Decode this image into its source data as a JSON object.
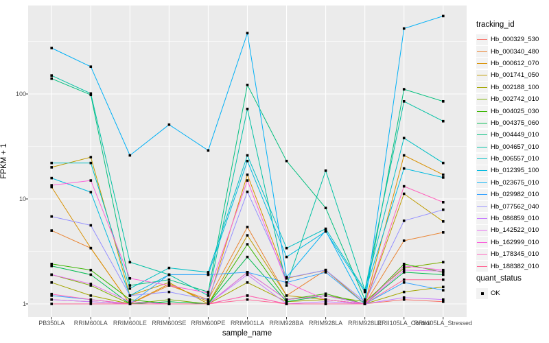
{
  "figure": {
    "panel_bg": "#EBEBEB",
    "grid_color": "#FFFFFF",
    "tick_color": "#333333",
    "tick_label_color": "#4D4D4D",
    "point_color": "#000000",
    "legend_key_bg": "#F2F2F2"
  },
  "chart_data": {
    "type": "line",
    "xlabel": "sample_name",
    "ylabel": "FPKM + 1",
    "y_scale": "log10",
    "y_ticks": [
      1,
      10,
      100
    ],
    "y_minor_ticks": [
      3.162,
      31.62,
      316.2
    ],
    "ylim_log10": [
      -0.08,
      2.85
    ],
    "grid": "on",
    "marker": "black-square",
    "legend_title": "tracking_id",
    "legend_position": "right",
    "x_categories": [
      "PB350LA",
      "RRIM600LA",
      "RRIM600LE",
      "RRIM600SE",
      "RRIM600PE",
      "RRIM901LA",
      "RRIM928BA",
      "RRIM928LA",
      "RRIM928LE",
      "RRII105LA_Control",
      "RRII105LA_Stressed"
    ],
    "series": [
      {
        "name": "Hb_000329_530",
        "color": "#F8766D",
        "values": [
          1.1,
          1.05,
          1.0,
          1.0,
          1.0,
          1.2,
          1.0,
          1.0,
          1.0,
          1.1,
          1.05
        ]
      },
      {
        "name": "Hb_000340_480",
        "color": "#EA8331",
        "values": [
          5.0,
          3.4,
          1.0,
          1.5,
          1.1,
          5.4,
          1.2,
          2.1,
          1.0,
          4.0,
          4.8
        ]
      },
      {
        "name": "Hb_000612_070",
        "color": "#D89000",
        "values": [
          13.0,
          3.4,
          1.0,
          1.55,
          1.05,
          17.0,
          1.75,
          2.1,
          1.0,
          26.0,
          17.0
        ]
      },
      {
        "name": "Hb_001741_050",
        "color": "#C09B00",
        "values": [
          20.0,
          25.0,
          1.2,
          1.6,
          1.0,
          4.5,
          1.2,
          1.1,
          1.0,
          11.2,
          6.1
        ]
      },
      {
        "name": "Hb_002188_100",
        "color": "#A3A500",
        "values": [
          1.6,
          1.2,
          1.0,
          1.0,
          1.0,
          1.6,
          1.05,
          1.1,
          1.0,
          1.3,
          1.45
        ]
      },
      {
        "name": "Hb_002742_010",
        "color": "#7CAE00",
        "values": [
          1.9,
          1.5,
          1.0,
          1.1,
          1.0,
          2.0,
          1.1,
          1.2,
          1.05,
          2.2,
          2.5
        ]
      },
      {
        "name": "Hb_004025_030",
        "color": "#39B600",
        "values": [
          2.4,
          2.1,
          1.1,
          1.0,
          1.0,
          3.7,
          1.1,
          1.25,
          1.0,
          2.4,
          2.0
        ]
      },
      {
        "name": "Hb_004375_060",
        "color": "#00BB4E",
        "values": [
          2.3,
          1.9,
          1.0,
          1.05,
          1.0,
          2.8,
          1.05,
          1.2,
          1.0,
          2.0,
          1.9
        ]
      },
      {
        "name": "Hb_004449_010",
        "color": "#00BF7D",
        "values": [
          140.0,
          98.0,
          1.5,
          1.7,
          1.3,
          122.0,
          23.0,
          8.2,
          1.1,
          111.0,
          85.0
        ]
      },
      {
        "name": "Hb_004657_010",
        "color": "#00C1A3",
        "values": [
          150.0,
          101.0,
          2.5,
          1.9,
          1.2,
          72.0,
          1.5,
          18.6,
          1.35,
          85.0,
          55.0
        ]
      },
      {
        "name": "Hb_006557_010",
        "color": "#00BFC4",
        "values": [
          22.0,
          22.0,
          1.4,
          2.2,
          2.0,
          26.0,
          3.4,
          5.2,
          1.35,
          38.0,
          22.0
        ]
      },
      {
        "name": "Hb_012395_100",
        "color": "#00BAE0",
        "values": [
          15.8,
          11.6,
          1.2,
          1.9,
          1.9,
          23.0,
          2.8,
          4.9,
          1.3,
          19.5,
          16.0
        ]
      },
      {
        "name": "Hb_023675_010",
        "color": "#00B0F6",
        "values": [
          274.0,
          182.0,
          26.0,
          51.0,
          29.0,
          380.0,
          1.8,
          5.0,
          1.0,
          420.0,
          553.0
        ]
      },
      {
        "name": "Hb_029982_010",
        "color": "#35A2FF",
        "values": [
          1.2,
          1.1,
          1.0,
          1.9,
          1.9,
          2.0,
          1.6,
          2.0,
          1.0,
          1.6,
          1.35
        ]
      },
      {
        "name": "Hb_077562_040",
        "color": "#9590FF",
        "values": [
          6.8,
          5.6,
          1.2,
          1.3,
          1.1,
          11.7,
          1.77,
          2.1,
          1.05,
          6.2,
          7.9
        ]
      },
      {
        "name": "Hb_086859_010",
        "color": "#C77CFF",
        "values": [
          1.1,
          1.05,
          1.0,
          1.0,
          1.0,
          1.9,
          1.0,
          1.05,
          1.0,
          1.15,
          1.1
        ]
      },
      {
        "name": "Hb_142522_010",
        "color": "#E76BF3",
        "values": [
          1.9,
          1.55,
          1.05,
          1.0,
          1.0,
          2.0,
          1.1,
          1.2,
          1.0,
          2.1,
          2.05
        ]
      },
      {
        "name": "Hb_162999_010",
        "color": "#FA62DB",
        "values": [
          13.5,
          15.0,
          1.75,
          1.5,
          1.27,
          15.0,
          1.6,
          1.1,
          1.0,
          2.3,
          2.1
        ]
      },
      {
        "name": "Hb_178345_010",
        "color": "#FF62BC",
        "values": [
          1.24,
          1.1,
          1.0,
          1.0,
          1.0,
          1.2,
          1.0,
          1.0,
          1.0,
          13.2,
          9.3
        ]
      },
      {
        "name": "Hb_188382_010",
        "color": "#FF6A98",
        "values": [
          1.0,
          1.0,
          1.0,
          1.0,
          1.0,
          1.1,
          1.0,
          1.0,
          1.0,
          1.7,
          1.7
        ]
      }
    ],
    "quant_legend": {
      "title": "quant_status",
      "items": [
        {
          "label": "OK",
          "marker": "black-square"
        }
      ]
    }
  }
}
